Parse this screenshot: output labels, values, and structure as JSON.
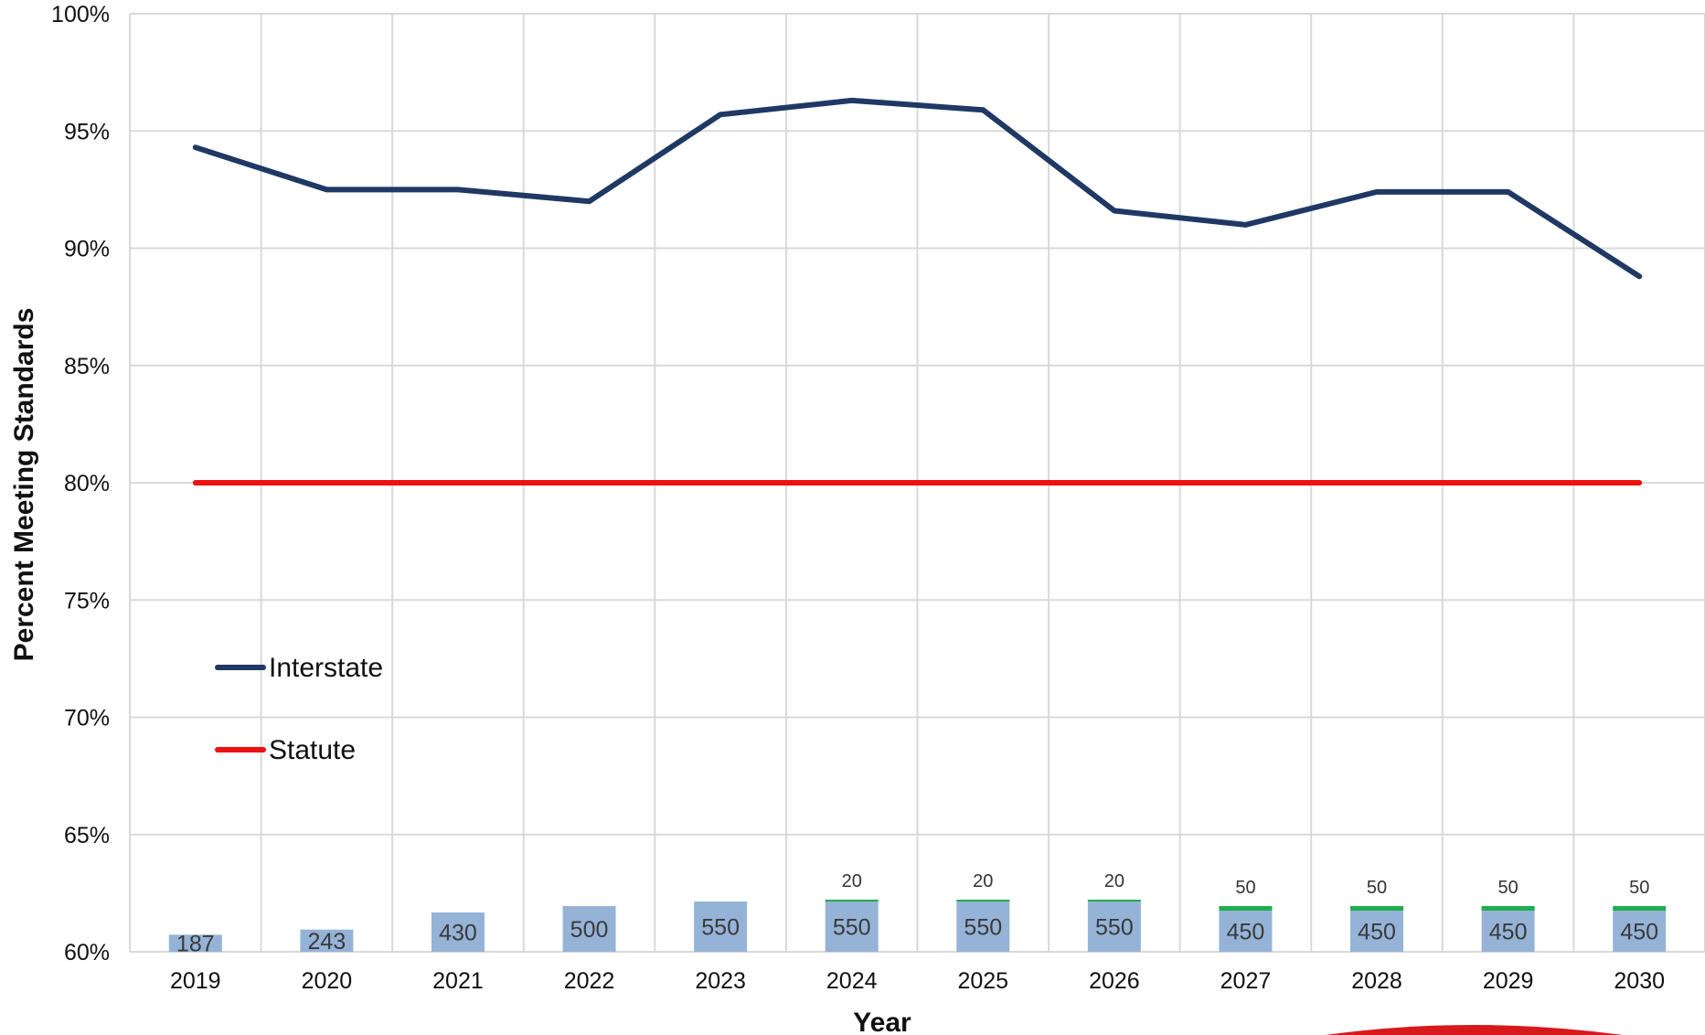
{
  "chart_data": {
    "type": "line",
    "xlabel": "Year",
    "ylabel": "Percent Meeting Standards",
    "categories": [
      "2019",
      "2020",
      "2021",
      "2022",
      "2023",
      "2024",
      "2025",
      "2026",
      "2027",
      "2028",
      "2029",
      "2030"
    ],
    "ylim": [
      60,
      100
    ],
    "y_ticks": [
      "60%",
      "65%",
      "70%",
      "75%",
      "80%",
      "85%",
      "90%",
      "95%",
      "100%"
    ],
    "grid": true,
    "legend_position": "left-lower",
    "series": [
      {
        "name": "Interstate",
        "color": "#1f3864",
        "values": [
          94.3,
          92.5,
          92.5,
          92.0,
          95.7,
          96.3,
          95.9,
          91.6,
          91.0,
          92.4,
          92.4,
          88.8
        ]
      },
      {
        "name": "Statute",
        "color": "#ee1111",
        "values": [
          80,
          80,
          80,
          80,
          80,
          80,
          80,
          80,
          80,
          80,
          80,
          80
        ]
      }
    ],
    "bars": {
      "color": "#95b3d7",
      "values": [
        187,
        243,
        430,
        500,
        550,
        550,
        550,
        550,
        450,
        450,
        450,
        450
      ],
      "labels": [
        "187",
        "243",
        "430",
        "500",
        "550",
        "550",
        "550",
        "550",
        "450",
        "450",
        "450",
        "450"
      ]
    },
    "bars_top": {
      "color": "#1fad4e",
      "values": [
        0,
        0,
        0,
        0,
        0,
        20,
        20,
        20,
        50,
        50,
        50,
        50
      ],
      "labels": [
        "",
        "",
        "",
        "",
        "",
        "20",
        "20",
        "20",
        "50",
        "50",
        "50",
        "50"
      ]
    }
  }
}
